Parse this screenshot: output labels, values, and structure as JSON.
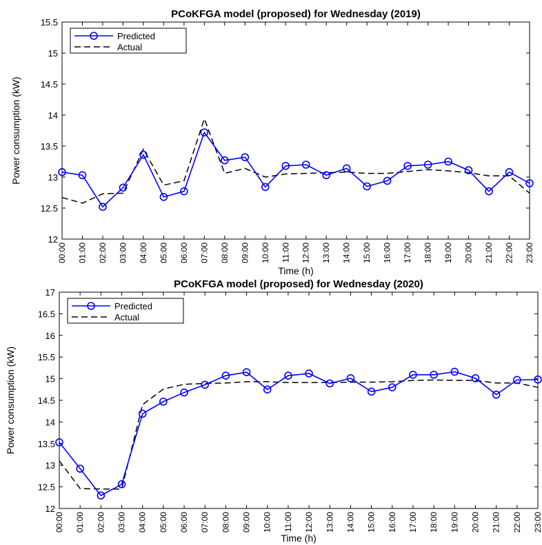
{
  "chart_data": [
    {
      "type": "line",
      "title": "PCoKFGA model (proposed) for Wednesday (2019)",
      "xlabel": "Time (h)",
      "ylabel": "Power consumption (kW)",
      "categories": [
        "00:00",
        "01:00",
        "02:00",
        "03:00",
        "04:00",
        "05:00",
        "06:00",
        "07:00",
        "08:00",
        "09:00",
        "10:00",
        "11:00",
        "12:00",
        "13:00",
        "14:00",
        "15:00",
        "16:00",
        "17:00",
        "18:00",
        "19:00",
        "20:00",
        "21:00",
        "22:00",
        "23:00"
      ],
      "ylim": [
        12,
        15.5
      ],
      "yticks": [
        "12",
        "12.5",
        "13",
        "13.5",
        "14",
        "14.5",
        "15",
        "15.5"
      ],
      "legend_position": "top-left",
      "grid": false,
      "series": [
        {
          "name": "Predicted",
          "style": "solid-circle",
          "color": "#0000ff",
          "values": [
            13.08,
            13.03,
            12.52,
            12.83,
            13.36,
            12.68,
            12.77,
            13.72,
            13.27,
            13.32,
            12.84,
            13.18,
            13.2,
            13.03,
            13.14,
            12.85,
            12.94,
            13.18,
            13.2,
            13.25,
            13.11,
            12.77,
            13.08,
            12.9
          ]
        },
        {
          "name": "Actual",
          "style": "dashed",
          "color": "#000000",
          "values": [
            12.67,
            12.58,
            12.73,
            12.74,
            13.45,
            12.87,
            12.94,
            13.94,
            13.06,
            13.14,
            13.0,
            13.05,
            13.06,
            13.07,
            13.08,
            13.06,
            13.06,
            13.09,
            13.12,
            13.1,
            13.07,
            13.02,
            13.02,
            12.74
          ]
        }
      ]
    },
    {
      "type": "line",
      "title": "PCoKFGA model (proposed) for Wednesday (2020)",
      "xlabel": "Time (h)",
      "ylabel": "Power consumption (kW)",
      "categories": [
        "00:00",
        "01:00",
        "02:00",
        "03:00",
        "04:00",
        "05:00",
        "06:00",
        "07:00",
        "08:00",
        "09:00",
        "10:00",
        "11:00",
        "12:00",
        "13:00",
        "14:00",
        "15:00",
        "16:00",
        "17:00",
        "18:00",
        "19:00",
        "20:00",
        "21:00",
        "22:00",
        "23:00"
      ],
      "ylim": [
        12,
        17
      ],
      "yticks": [
        "12",
        "12.5",
        "13",
        "13.5",
        "14",
        "14.5",
        "15",
        "15.5",
        "16",
        "16.5",
        "17"
      ],
      "legend_position": "top-left",
      "grid": false,
      "series": [
        {
          "name": "Predicted",
          "style": "solid-circle",
          "color": "#0000ff",
          "values": [
            13.53,
            12.92,
            12.3,
            12.56,
            14.19,
            14.47,
            14.68,
            14.86,
            15.07,
            15.15,
            14.75,
            15.07,
            15.12,
            14.89,
            15.01,
            14.7,
            14.8,
            15.09,
            15.09,
            15.16,
            15.01,
            14.63,
            14.97,
            14.98
          ]
        },
        {
          "name": "Actual",
          "style": "dashed",
          "color": "#000000",
          "values": [
            13.1,
            12.46,
            12.45,
            12.45,
            14.4,
            14.76,
            14.87,
            14.89,
            14.9,
            14.93,
            14.93,
            14.91,
            14.91,
            14.91,
            14.92,
            14.92,
            14.93,
            14.96,
            14.97,
            14.96,
            14.96,
            14.9,
            14.9,
            14.8
          ]
        }
      ]
    }
  ]
}
